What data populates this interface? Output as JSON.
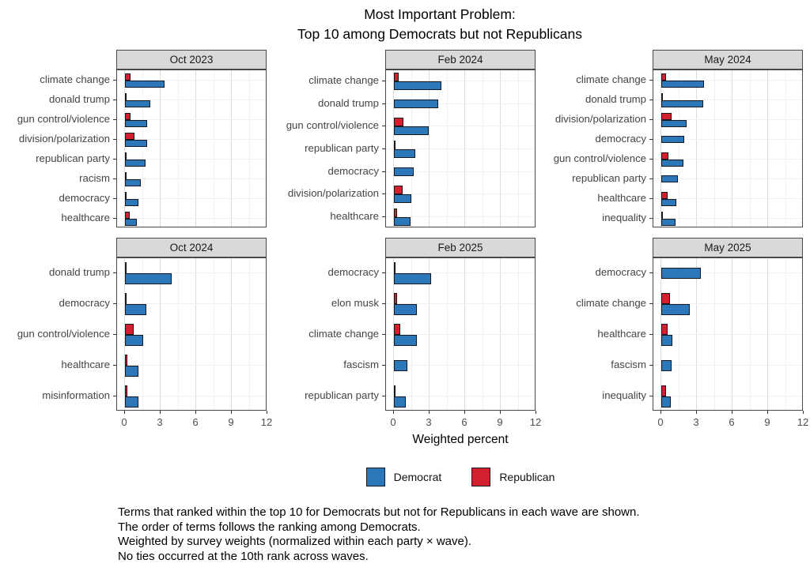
{
  "chart_data": {
    "type": "bar",
    "orientation": "horizontal",
    "title_lines": [
      "Most Important Problem:",
      "Top 10 among Democrats but not Republicans"
    ],
    "xlabel": "Weighted percent",
    "x_ticks": [
      0,
      3,
      6,
      9,
      12
    ],
    "x_minor_ticks": [
      1.5,
      4.5,
      7.5,
      10.5
    ],
    "xlim": [
      0,
      12
    ],
    "grid": "on",
    "legend_position": "bottom",
    "colors": {
      "democrat": "#2b77b9",
      "republican": "#d2202e",
      "bar_outline": "#15191d",
      "strip_bg": "#d9d9d9",
      "panel_border": "#4a4a4a",
      "grid_major": "#dcdcdc",
      "grid_minor": "#f1f1f1",
      "axis_text": "#4d4d4d"
    },
    "legend": [
      {
        "label": "Democrat",
        "color": "#2b77b9"
      },
      {
        "label": "Republican",
        "color": "#d2202e"
      }
    ],
    "panels": [
      {
        "title": "Oct 2023",
        "rows": [
          {
            "label": "climate change",
            "democrat": 3.3,
            "republican": 0.45
          },
          {
            "label": "donald trump",
            "democrat": 2.15,
            "republican": 0.05
          },
          {
            "label": "gun control/violence",
            "democrat": 1.85,
            "republican": 0.45
          },
          {
            "label": "division/polarization",
            "democrat": 1.85,
            "republican": 0.8
          },
          {
            "label": "republican party",
            "democrat": 1.75,
            "republican": 0.1
          },
          {
            "label": "racism",
            "democrat": 1.35,
            "republican": 0.05
          },
          {
            "label": "democracy",
            "democrat": 1.1,
            "republican": 0.05
          },
          {
            "label": "healthcare",
            "democrat": 1.0,
            "republican": 0.4
          }
        ]
      },
      {
        "title": "Feb 2024",
        "rows": [
          {
            "label": "climate change",
            "democrat": 4.0,
            "republican": 0.4
          },
          {
            "label": "donald trump",
            "democrat": 3.7,
            "republican": 0
          },
          {
            "label": "gun control/violence",
            "democrat": 2.95,
            "republican": 0.8
          },
          {
            "label": "republican party",
            "democrat": 1.8,
            "republican": 0.05
          },
          {
            "label": "democracy",
            "democrat": 1.65,
            "republican": 0
          },
          {
            "label": "division/polarization",
            "democrat": 1.45,
            "republican": 0.75
          },
          {
            "label": "healthcare",
            "democrat": 1.4,
            "republican": 0.25
          }
        ]
      },
      {
        "title": "May 2024",
        "rows": [
          {
            "label": "climate change",
            "democrat": 3.6,
            "republican": 0.4
          },
          {
            "label": "donald trump",
            "democrat": 3.5,
            "republican": 0.15
          },
          {
            "label": "division/polarization",
            "democrat": 2.1,
            "republican": 0.85
          },
          {
            "label": "democracy",
            "democrat": 1.9,
            "republican": 0
          },
          {
            "label": "gun control/violence",
            "democrat": 1.85,
            "republican": 0.6
          },
          {
            "label": "republican party",
            "democrat": 1.4,
            "republican": 0
          },
          {
            "label": "healthcare",
            "democrat": 1.25,
            "republican": 0.5
          },
          {
            "label": "inequality",
            "democrat": 1.2,
            "republican": 0.05
          }
        ]
      },
      {
        "title": "Oct 2024",
        "rows": [
          {
            "label": "donald trump",
            "democrat": 3.9,
            "republican": 0.15
          },
          {
            "label": "democracy",
            "democrat": 1.8,
            "republican": 0.03
          },
          {
            "label": "gun control/violence",
            "democrat": 1.5,
            "republican": 0.7
          },
          {
            "label": "healthcare",
            "democrat": 1.15,
            "republican": 0.2
          },
          {
            "label": "misinformation",
            "democrat": 1.1,
            "republican": 0.2
          }
        ]
      },
      {
        "title": "Feb 2025",
        "rows": [
          {
            "label": "democracy",
            "democrat": 3.1,
            "republican": 0.1
          },
          {
            "label": "elon musk",
            "democrat": 1.95,
            "republican": 0.25
          },
          {
            "label": "climate change",
            "democrat": 1.95,
            "republican": 0.55
          },
          {
            "label": "fascism",
            "democrat": 1.15,
            "republican": 0
          },
          {
            "label": "republican party",
            "democrat": 1.0,
            "republican": 0.15
          }
        ]
      },
      {
        "title": "May 2025",
        "rows": [
          {
            "label": "democracy",
            "democrat": 3.3,
            "republican": 0
          },
          {
            "label": "climate change",
            "democrat": 2.4,
            "republican": 0.7
          },
          {
            "label": "healthcare",
            "democrat": 0.95,
            "republican": 0.5
          },
          {
            "label": "fascism",
            "democrat": 0.85,
            "republican": 0
          },
          {
            "label": "inequality",
            "democrat": 0.8,
            "republican": 0.4
          }
        ]
      }
    ]
  },
  "caption": {
    "lines": [
      "Terms that ranked within the top 10 for Democrats but not for Republicans in each wave are shown.",
      "The order of terms follows the ranking among Democrats.",
      "Weighted by survey weights (normalized within each party × wave).",
      "No ties occurred at the 10th rank across waves."
    ]
  }
}
